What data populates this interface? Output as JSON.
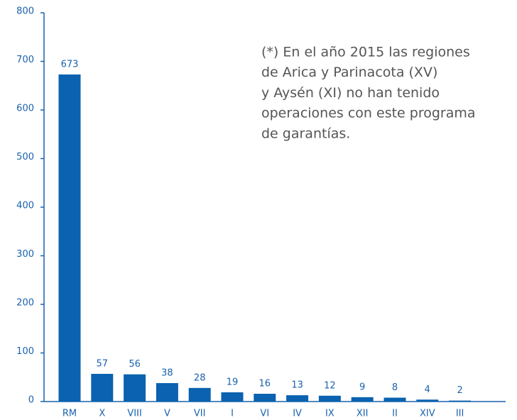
{
  "chart_data": {
    "type": "bar",
    "categories": [
      "RM",
      "X",
      "VIII",
      "V",
      "VII",
      "I",
      "VI",
      "IV",
      "IX",
      "XII",
      "II",
      "XIV",
      "III"
    ],
    "values": [
      673,
      57,
      56,
      38,
      28,
      19,
      16,
      13,
      12,
      9,
      8,
      4,
      2
    ],
    "color": "#0a62b0",
    "ylim": [
      0,
      800
    ],
    "yticks": [
      0,
      100,
      200,
      300,
      400,
      500,
      600,
      700,
      800
    ],
    "annotation": [
      "(*) En el año 2015 las regiones",
      "de Arica y Parinacota (XV)",
      "y Aysén (XI) no han tenido",
      "operaciones con este programa",
      "de garantías."
    ]
  }
}
